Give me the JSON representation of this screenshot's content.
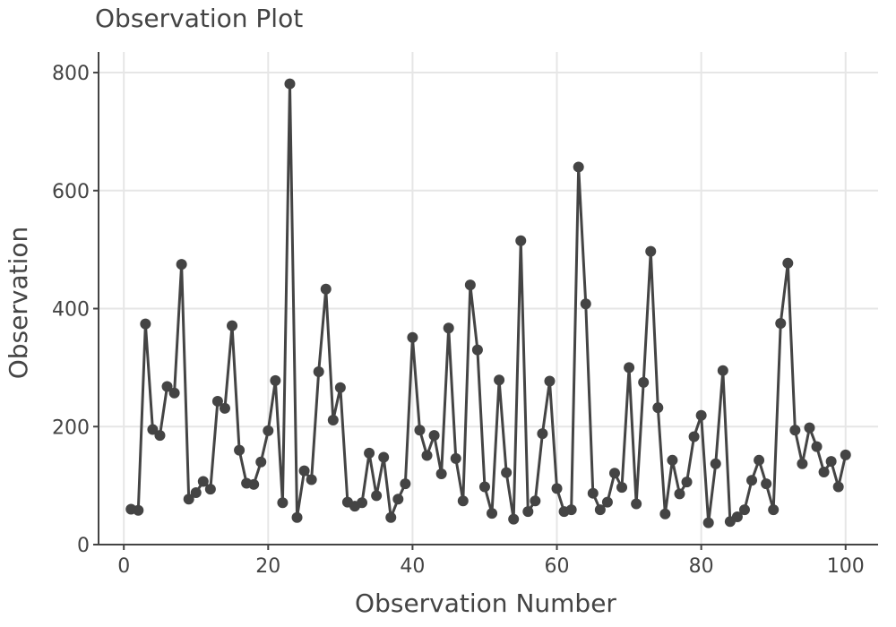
{
  "chart_data": {
    "type": "line",
    "title": "Observation Plot",
    "xlabel": "Observation Number",
    "ylabel": "Observation",
    "xlim": [
      -3.5,
      104.5
    ],
    "ylim": [
      0,
      835
    ],
    "xticks": [
      0,
      20,
      40,
      60,
      80,
      100
    ],
    "yticks": [
      0,
      200,
      400,
      600,
      800
    ],
    "grid": true,
    "colors": {
      "line": "#444444",
      "grid": "#e6e6e6"
    },
    "x": [
      1,
      2,
      3,
      4,
      5,
      6,
      7,
      8,
      9,
      10,
      11,
      12,
      13,
      14,
      15,
      16,
      17,
      18,
      19,
      20,
      21,
      22,
      23,
      24,
      25,
      26,
      27,
      28,
      29,
      30,
      31,
      32,
      33,
      34,
      35,
      36,
      37,
      38,
      39,
      40,
      41,
      42,
      43,
      44,
      45,
      46,
      47,
      48,
      49,
      50,
      51,
      52,
      53,
      54,
      55,
      56,
      57,
      58,
      59,
      60,
      61,
      62,
      63,
      64,
      65,
      66,
      67,
      68,
      69,
      70,
      71,
      72,
      73,
      74,
      75,
      76,
      77,
      78,
      79,
      80,
      81,
      82,
      83,
      84,
      85,
      86,
      87,
      88,
      89,
      90,
      91,
      92,
      93,
      94,
      95,
      96,
      97,
      98,
      99,
      100
    ],
    "values": [
      60,
      58,
      374,
      195,
      185,
      268,
      257,
      475,
      77,
      88,
      107,
      94,
      243,
      231,
      371,
      160,
      104,
      102,
      140,
      193,
      278,
      71,
      781,
      46,
      125,
      110,
      293,
      433,
      211,
      266,
      72,
      65,
      71,
      155,
      83,
      148,
      46,
      77,
      103,
      351,
      194,
      151,
      185,
      120,
      367,
      146,
      74,
      440,
      330,
      98,
      53,
      279,
      122,
      43,
      515,
      56,
      74,
      188,
      277,
      95,
      56,
      59,
      640,
      408,
      87,
      59,
      72,
      121,
      97,
      300,
      69,
      275,
      497,
      232,
      52,
      143,
      86,
      106,
      183,
      219,
      37,
      137,
      295,
      39,
      47,
      59,
      109,
      143,
      103,
      59,
      375,
      477,
      194,
      137,
      198,
      166,
      123,
      141,
      98,
      152
    ]
  }
}
